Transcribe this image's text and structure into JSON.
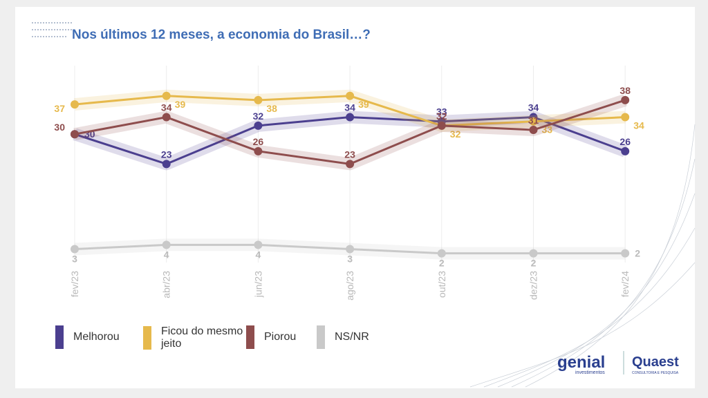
{
  "chart_data": {
    "type": "line",
    "title": "Nos últimos 12 meses, a economia do Brasil…?",
    "categories": [
      "fev/23",
      "abr/23",
      "jun/23",
      "ago/23",
      "out/23",
      "dez/23",
      "fev/24"
    ],
    "series": [
      {
        "name": "Melhorou",
        "color": "#4b3f8f",
        "values": [
          30,
          23,
          32,
          34,
          33,
          34,
          26
        ]
      },
      {
        "name": "Ficou do mesmo jeito",
        "color": "#e6b94c",
        "values": [
          37,
          39,
          38,
          39,
          32,
          33,
          34
        ]
      },
      {
        "name": "Piorou",
        "color": "#8e4d4d",
        "values": [
          30,
          34,
          26,
          23,
          32,
          31,
          38
        ]
      },
      {
        "name": "NS/NR",
        "color": "#c9c9c9",
        "values": [
          3,
          4,
          4,
          3,
          2,
          2,
          2
        ]
      }
    ],
    "grid": true
  },
  "logos": {
    "genial": "genial",
    "genial_sub": "investimentos",
    "quaest": "Quaest",
    "quaest_sub": "CONSULTORIA E PESQUISA"
  }
}
